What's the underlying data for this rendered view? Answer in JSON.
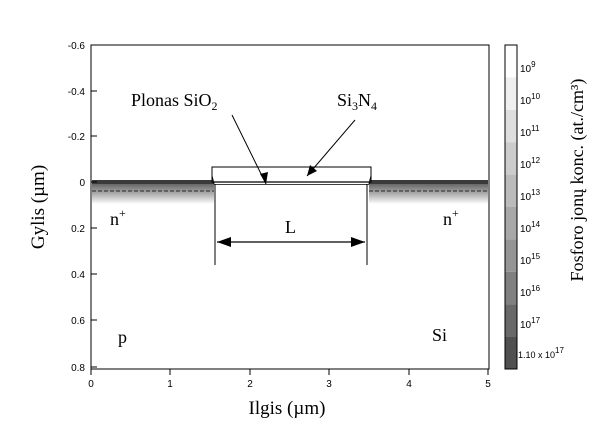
{
  "figure": {
    "x_axis_label": "Ilgis (µm)",
    "y_axis_label": "Gylis (µm)",
    "x_ticks": [
      "0",
      "1",
      "2",
      "3",
      "4",
      "5"
    ],
    "y_ticks": [
      "-0.6",
      "-0.4",
      "-0.2",
      "0",
      "0.2",
      "0.4",
      "0.6",
      "0.8"
    ],
    "x_range": [
      0,
      5
    ],
    "y_range": [
      -0.6,
      0.8
    ],
    "y_inverted": true
  },
  "colorbar": {
    "title": "Fosforo jonų konc. (at./cm³)",
    "labels": [
      {
        "base": "10",
        "exp": "9"
      },
      {
        "base": "10",
        "exp": "10"
      },
      {
        "base": "10",
        "exp": "11"
      },
      {
        "base": "10",
        "exp": "12"
      },
      {
        "base": "10",
        "exp": "13"
      },
      {
        "base": "10",
        "exp": "14"
      },
      {
        "base": "10",
        "exp": "15"
      },
      {
        "base": "10",
        "exp": "16"
      },
      {
        "base": "10",
        "exp": "17"
      }
    ],
    "last_label": {
      "mantissa": "1.10 x 10",
      "exp": "17"
    },
    "colors": [
      "#ffffff",
      "#efefef",
      "#dedede",
      "#cccccc",
      "#bbbbbb",
      "#a8a8a8",
      "#959595",
      "#808080",
      "#696969",
      "#505050"
    ]
  },
  "annotations": {
    "oxide": {
      "prefix": "Plonas SiO",
      "sub": "2"
    },
    "nitride": {
      "a": "Si",
      "sub1": "3",
      "b": "N",
      "sub2": "4"
    },
    "n_plus": {
      "base": "n",
      "sup": "+"
    },
    "channel": "L",
    "p_region": "p",
    "substrate": "Si"
  },
  "device": {
    "nitride_x": [
      1.55,
      3.5
    ],
    "nitride_y": [
      -0.06,
      0.0
    ],
    "oxide_y": [
      0.0,
      0.01
    ],
    "junction_left_x": 1.55,
    "junction_right_x": 3.5,
    "junction_depth_um": 0.1,
    "channel_arrow_x": [
      1.57,
      3.48
    ],
    "channel_arrow_y": 0.19
  }
}
